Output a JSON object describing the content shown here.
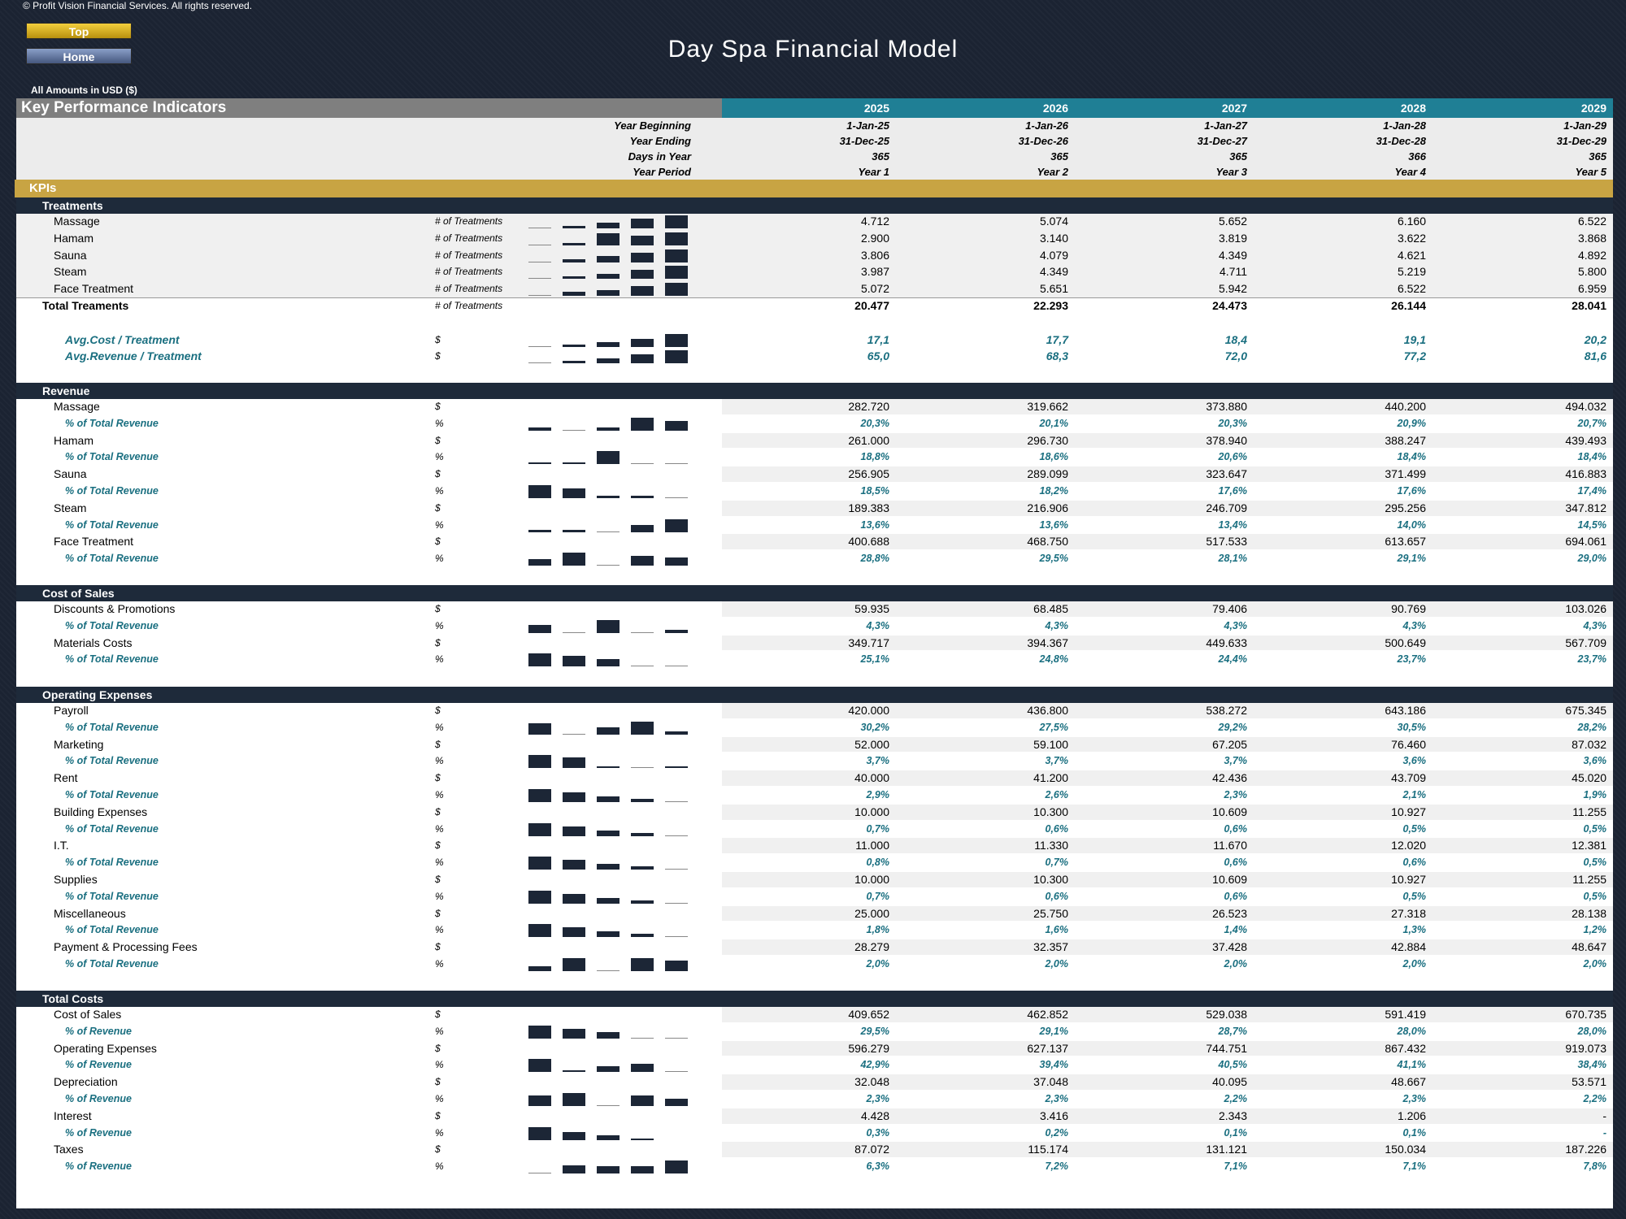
{
  "copyright": "© Profit Vision Financial Services. All rights reserved.",
  "nav": {
    "top_label": "Top",
    "home_label": "Home"
  },
  "title": "Day Spa Financial Model",
  "amounts_note": "All Amounts in  USD ($)",
  "kpi_title": "Key Performance Indicators",
  "years": [
    "2025",
    "2026",
    "2027",
    "2028",
    "2029"
  ],
  "header_rows": [
    {
      "label": "Year Beginning",
      "values": [
        "1-Jan-25",
        "1-Jan-26",
        "1-Jan-27",
        "1-Jan-28",
        "1-Jan-29"
      ]
    },
    {
      "label": "Year Ending",
      "values": [
        "31-Dec-25",
        "31-Dec-26",
        "31-Dec-27",
        "31-Dec-28",
        "31-Dec-29"
      ]
    },
    {
      "label": "Days in Year",
      "values": [
        "365",
        "365",
        "365",
        "366",
        "365"
      ]
    },
    {
      "label": "Year Period",
      "values": [
        "Year 1",
        "Year 2",
        "Year 3",
        "Year 4",
        "Year 5"
      ]
    }
  ],
  "kpis_label": "KPIs",
  "treatments": {
    "title": "Treatments",
    "rows": [
      {
        "label": "Massage",
        "unit": "# of Treatments",
        "values": [
          "4.712",
          "5.074",
          "5.652",
          "6.160",
          "6.522"
        ],
        "spark": [
          0.0,
          0.2,
          0.45,
          0.75,
          1.0
        ]
      },
      {
        "label": "Hamam",
        "unit": "# of Treatments",
        "values": [
          "2.900",
          "3.140",
          "3.819",
          "3.622",
          "3.868"
        ],
        "spark": [
          0.0,
          0.2,
          0.95,
          0.75,
          1.0
        ]
      },
      {
        "label": "Sauna",
        "unit": "# of Treatments",
        "values": [
          "3.806",
          "4.079",
          "4.349",
          "4.621",
          "4.892"
        ],
        "spark": [
          0.0,
          0.25,
          0.5,
          0.75,
          1.0
        ]
      },
      {
        "label": "Steam",
        "unit": "# of Treatments",
        "values": [
          "3.987",
          "4.349",
          "4.711",
          "5.219",
          "5.800"
        ],
        "spark": [
          0.0,
          0.2,
          0.4,
          0.7,
          1.0
        ]
      },
      {
        "label": "Face Treatment",
        "unit": "# of Treatments",
        "values": [
          "5.072",
          "5.651",
          "5.942",
          "6.522",
          "6.959"
        ],
        "spark": [
          0.0,
          0.3,
          0.45,
          0.75,
          1.0
        ]
      }
    ],
    "total": {
      "label": "Total Treaments",
      "unit": "# of Treatments",
      "values": [
        "20.477",
        "22.293",
        "24.473",
        "26.144",
        "28.041"
      ]
    },
    "avg": [
      {
        "label": "Avg.Cost / Treatment",
        "unit": "$",
        "values": [
          "17,1",
          "17,7",
          "18,4",
          "19,1",
          "20,2"
        ],
        "spark": [
          0.0,
          0.2,
          0.4,
          0.6,
          1.0
        ]
      },
      {
        "label": "Avg.Revenue / Treatment",
        "unit": "$",
        "values": [
          "65,0",
          "68,3",
          "72,0",
          "77,2",
          "81,6"
        ],
        "spark": [
          0.0,
          0.2,
          0.4,
          0.7,
          1.0
        ]
      }
    ]
  },
  "revenue": {
    "title": "Revenue",
    "pct_label": "% of Total Revenue",
    "rows": [
      {
        "label": "Massage",
        "values": [
          "282.720",
          "319.662",
          "373.880",
          "440.200",
          "494.032"
        ],
        "pct": [
          "20,3%",
          "20,1%",
          "20,3%",
          "20,9%",
          "20,7%"
        ],
        "spark": [
          0.25,
          0.0,
          0.25,
          1.0,
          0.75
        ]
      },
      {
        "label": "Hamam",
        "values": [
          "261.000",
          "296.730",
          "378.940",
          "388.247",
          "439.493"
        ],
        "pct": [
          "18,8%",
          "18,6%",
          "20,6%",
          "18,4%",
          "18,4%"
        ],
        "spark": [
          0.1,
          0.1,
          1.0,
          0.0,
          0.0
        ]
      },
      {
        "label": "Sauna",
        "values": [
          "256.905",
          "289.099",
          "323.647",
          "371.499",
          "416.883"
        ],
        "pct": [
          "18,5%",
          "18,2%",
          "17,6%",
          "17,6%",
          "17,4%"
        ],
        "spark": [
          1.0,
          0.75,
          0.2,
          0.2,
          0.0
        ]
      },
      {
        "label": "Steam",
        "values": [
          "189.383",
          "216.906",
          "246.709",
          "295.256",
          "347.812"
        ],
        "pct": [
          "13,6%",
          "13,6%",
          "13,4%",
          "14,0%",
          "14,5%"
        ],
        "spark": [
          0.2,
          0.2,
          0.0,
          0.55,
          1.0
        ]
      },
      {
        "label": "Face Treatment",
        "values": [
          "400.688",
          "468.750",
          "517.533",
          "613.657",
          "694.061"
        ],
        "pct": [
          "28,8%",
          "29,5%",
          "28,1%",
          "29,1%",
          "29,0%"
        ],
        "spark": [
          0.5,
          1.0,
          0.0,
          0.75,
          0.65
        ]
      }
    ]
  },
  "cost_of_sales": {
    "title": "Cost of Sales",
    "pct_label": "% of Total Revenue",
    "rows": [
      {
        "label": "Discounts & Promotions",
        "values": [
          "59.935",
          "68.485",
          "79.406",
          "90.769",
          "103.026"
        ],
        "pct": [
          "4,3%",
          "4,3%",
          "4,3%",
          "4,3%",
          "4,3%"
        ],
        "spark": [
          0.6,
          0.0,
          1.0,
          0.0,
          0.25
        ]
      },
      {
        "label": "Materials Costs",
        "values": [
          "349.717",
          "394.367",
          "449.633",
          "500.649",
          "567.709"
        ],
        "pct": [
          "25,1%",
          "24,8%",
          "24,4%",
          "23,7%",
          "23,7%"
        ],
        "spark": [
          1.0,
          0.8,
          0.55,
          0.0,
          0.0
        ]
      }
    ]
  },
  "operating_expenses": {
    "title": "Operating Expenses",
    "pct_label": "% of Total Revenue",
    "rows": [
      {
        "label": "Payroll",
        "values": [
          "420.000",
          "436.800",
          "538.272",
          "643.186",
          "675.345"
        ],
        "pct": [
          "30,2%",
          "27,5%",
          "29,2%",
          "30,5%",
          "28,2%"
        ],
        "spark": [
          0.85,
          0.0,
          0.55,
          1.0,
          0.25
        ]
      },
      {
        "label": "Marketing",
        "values": [
          "52.000",
          "59.100",
          "67.205",
          "76.460",
          "87.032"
        ],
        "pct": [
          "3,7%",
          "3,7%",
          "3,7%",
          "3,6%",
          "3,6%"
        ],
        "spark": [
          1.0,
          0.8,
          0.15,
          0.0,
          0.1
        ]
      },
      {
        "label": "Rent",
        "values": [
          "40.000",
          "41.200",
          "42.436",
          "43.709",
          "45.020"
        ],
        "pct": [
          "2,9%",
          "2,6%",
          "2,3%",
          "2,1%",
          "1,9%"
        ],
        "spark": [
          1.0,
          0.75,
          0.45,
          0.25,
          0.0
        ]
      },
      {
        "label": "Building Expenses",
        "values": [
          "10.000",
          "10.300",
          "10.609",
          "10.927",
          "11.255"
        ],
        "pct": [
          "0,7%",
          "0,6%",
          "0,6%",
          "0,5%",
          "0,5%"
        ],
        "spark": [
          1.0,
          0.75,
          0.45,
          0.25,
          0.0
        ]
      },
      {
        "label": "I.T.",
        "values": [
          "11.000",
          "11.330",
          "11.670",
          "12.020",
          "12.381"
        ],
        "pct": [
          "0,8%",
          "0,7%",
          "0,6%",
          "0,6%",
          "0,5%"
        ],
        "spark": [
          1.0,
          0.75,
          0.45,
          0.25,
          0.0
        ]
      },
      {
        "label": "Supplies",
        "values": [
          "10.000",
          "10.300",
          "10.609",
          "10.927",
          "11.255"
        ],
        "pct": [
          "0,7%",
          "0,6%",
          "0,6%",
          "0,5%",
          "0,5%"
        ],
        "spark": [
          1.0,
          0.75,
          0.45,
          0.25,
          0.0
        ]
      },
      {
        "label": "Miscellaneous",
        "values": [
          "25.000",
          "25.750",
          "26.523",
          "27.318",
          "28.138"
        ],
        "pct": [
          "1,8%",
          "1,6%",
          "1,4%",
          "1,3%",
          "1,2%"
        ],
        "spark": [
          1.0,
          0.75,
          0.45,
          0.25,
          0.0
        ]
      },
      {
        "label": "Payment & Processing Fees",
        "values": [
          "28.279",
          "32.357",
          "37.428",
          "42.884",
          "48.647"
        ],
        "pct": [
          "2,0%",
          "2,0%",
          "2,0%",
          "2,0%",
          "2,0%"
        ],
        "spark": [
          0.4,
          1.0,
          0.0,
          1.0,
          0.8
        ]
      }
    ]
  },
  "total_costs": {
    "title": "Total Costs",
    "pct_label": "% of Revenue",
    "rows": [
      {
        "label": "Cost of Sales",
        "values": [
          "409.652",
          "462.852",
          "529.038",
          "591.419",
          "670.735"
        ],
        "pct": [
          "29,5%",
          "29,1%",
          "28,7%",
          "28,0%",
          "28,0%"
        ],
        "spark": [
          1.0,
          0.75,
          0.5,
          0.0,
          0.0
        ]
      },
      {
        "label": "Operating Expenses",
        "values": [
          "596.279",
          "627.137",
          "744.751",
          "867.432",
          "919.073"
        ],
        "pct": [
          "42,9%",
          "39,4%",
          "40,5%",
          "41,1%",
          "38,4%"
        ],
        "spark": [
          1.0,
          0.15,
          0.45,
          0.6,
          0.0
        ]
      },
      {
        "label": "Depreciation",
        "values": [
          "32.048",
          "37.048",
          "40.095",
          "48.667",
          "53.571"
        ],
        "pct": [
          "2,3%",
          "2,3%",
          "2,2%",
          "2,3%",
          "2,2%"
        ],
        "spark": [
          0.8,
          1.0,
          0.0,
          0.8,
          0.55
        ]
      },
      {
        "label": "Interest",
        "values": [
          "4.428",
          "3.416",
          "2.343",
          "1.206",
          "-"
        ],
        "pct": [
          "0,3%",
          "0,2%",
          "0,1%",
          "0,1%",
          "-"
        ],
        "spark": [
          1.0,
          0.65,
          0.35,
          0.15,
          null
        ]
      },
      {
        "label": "Taxes",
        "values": [
          "87.072",
          "115.174",
          "131.121",
          "150.034",
          "187.226"
        ],
        "pct": [
          "6,3%",
          "7,2%",
          "7,1%",
          "7,1%",
          "7,8%"
        ],
        "spark": [
          0.0,
          0.6,
          0.55,
          0.55,
          1.0
        ]
      }
    ]
  },
  "units": {
    "money": "$",
    "pct": "%"
  }
}
